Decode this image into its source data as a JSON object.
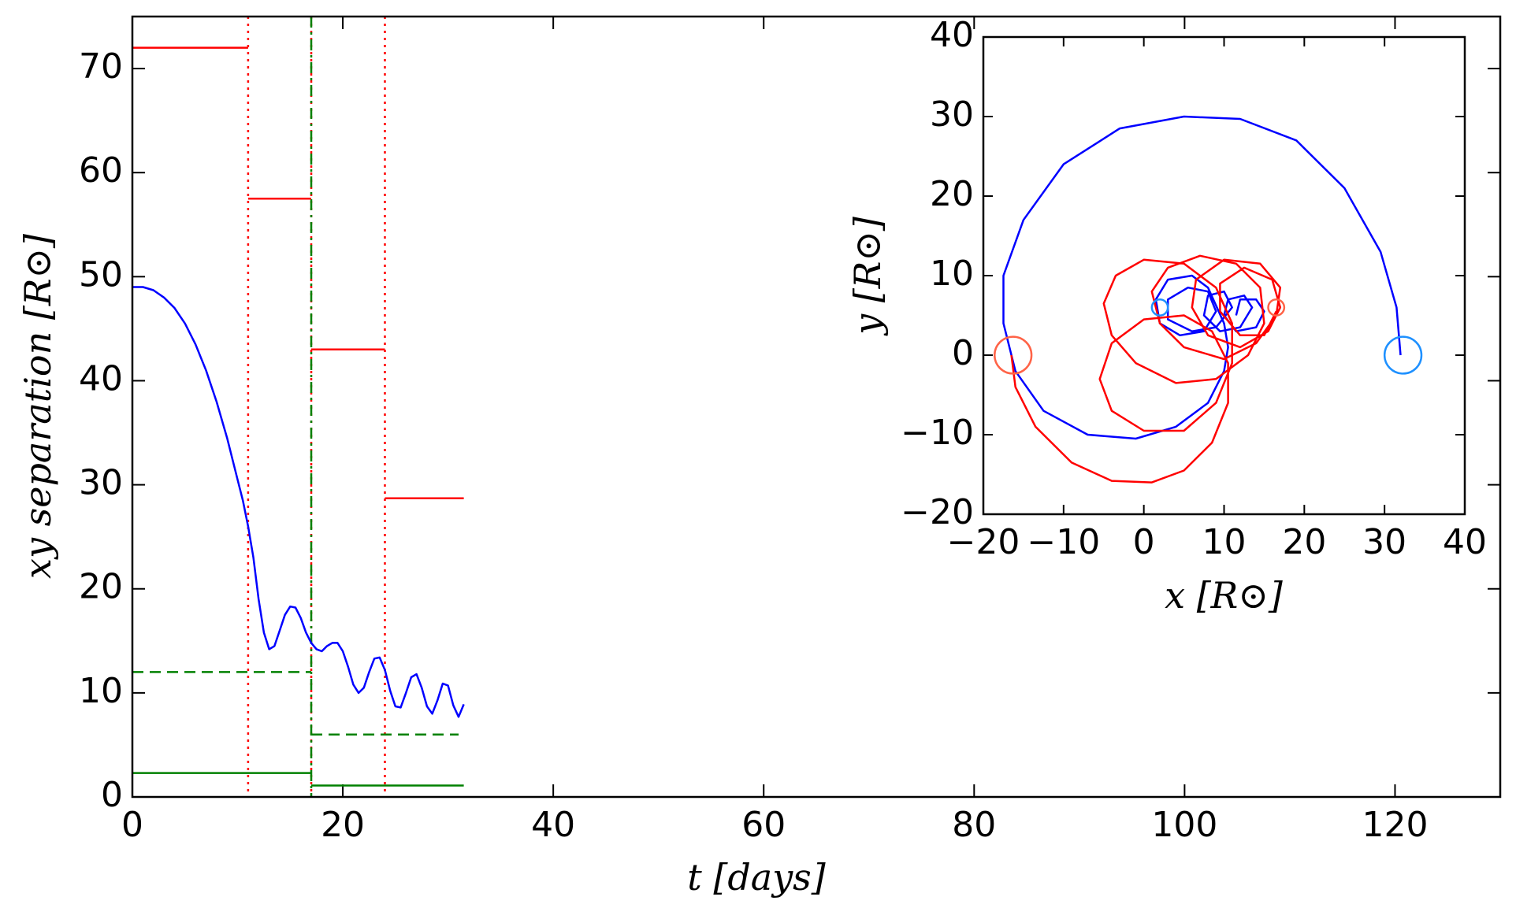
{
  "chart_data": [
    {
      "type": "line",
      "xlabel": "t  [days]",
      "ylabel": "xy  separation  [R⊙]",
      "xlim": [
        0,
        130
      ],
      "ylim": [
        0,
        75
      ],
      "xticks": [
        0,
        20,
        40,
        60,
        80,
        100,
        120
      ],
      "yticks": [
        0,
        10,
        20,
        30,
        40,
        50,
        60,
        70
      ],
      "series": [
        {
          "color": "#0000ff",
          "style": "solid",
          "x": [
            0,
            1,
            2,
            3,
            4,
            5,
            6,
            7,
            8,
            9,
            10,
            10.5,
            11,
            11.5,
            12,
            12.5,
            13,
            13.5,
            14,
            14.5,
            15,
            15.5,
            16,
            16.5,
            17,
            17.5,
            18,
            18.5,
            19,
            19.5,
            20,
            20.5,
            21,
            21.5,
            22,
            22.5,
            23,
            23.5,
            24,
            24.5,
            25,
            25.5,
            26,
            26.5,
            27,
            27.5,
            28,
            28.5,
            29,
            29.5,
            30,
            30.5,
            31,
            31.5
          ],
          "values": [
            49,
            49,
            48.7,
            48,
            47,
            45.5,
            43.5,
            41,
            38,
            34.5,
            30.5,
            28.5,
            26,
            23,
            19,
            15.8,
            14.2,
            14.5,
            16,
            17.5,
            18.3,
            18.2,
            17.2,
            15.8,
            14.8,
            14.2,
            14,
            14.5,
            14.8,
            14.8,
            14,
            12.5,
            10.8,
            10,
            10.5,
            12,
            13.3,
            13.4,
            12.2,
            10.2,
            8.7,
            8.6,
            10,
            11.5,
            11.8,
            10.5,
            8.7,
            8,
            9.3,
            10.9,
            10.7,
            8.8,
            7.7,
            8.9
          ]
        },
        {
          "color": "#ff0000",
          "style": "solid",
          "x": [
            0,
            11
          ],
          "values": [
            72,
            72
          ]
        },
        {
          "color": "#ff0000",
          "style": "solid",
          "x": [
            11,
            17
          ],
          "values": [
            57.5,
            57.5
          ]
        },
        {
          "color": "#ff0000",
          "style": "solid",
          "x": [
            17,
            24
          ],
          "values": [
            43,
            43
          ]
        },
        {
          "color": "#ff0000",
          "style": "solid",
          "x": [
            24,
            31.5
          ],
          "values": [
            28.7,
            28.7
          ]
        },
        {
          "color": "#008000",
          "style": "dashed",
          "x": [
            0,
            17
          ],
          "values": [
            12,
            12
          ]
        },
        {
          "color": "#008000",
          "style": "dashed",
          "x": [
            17,
            31
          ],
          "values": [
            6,
            6
          ]
        },
        {
          "color": "#008000",
          "style": "solid",
          "x": [
            0,
            17
          ],
          "values": [
            2.3,
            2.3
          ]
        },
        {
          "color": "#008000",
          "style": "solid",
          "x": [
            17,
            31.5
          ],
          "values": [
            1.1,
            1.1
          ]
        }
      ],
      "vlines": [
        {
          "x": 11,
          "color": "#ff0000",
          "style": "dotted"
        },
        {
          "x": 17,
          "color": "#ff0000",
          "style": "dotted"
        },
        {
          "x": 17,
          "color": "#008000",
          "style": "dashdot"
        },
        {
          "x": 24,
          "color": "#ff0000",
          "style": "dotted"
        }
      ]
    },
    {
      "type": "line",
      "xlabel": "x [R⊙]",
      "ylabel": "y [R⊙]",
      "xlim": [
        -20,
        40
      ],
      "ylim": [
        -20,
        40
      ],
      "xticks": [
        {
          "value": -20,
          "label": "−20"
        },
        {
          "value": -10,
          "label": "−10"
        },
        0,
        10,
        20,
        30,
        40
      ],
      "yticks": [
        {
          "value": -20,
          "label": "−20"
        },
        {
          "value": -10,
          "label": "−10"
        },
        0,
        10,
        20,
        30,
        40
      ],
      "series": [
        {
          "color": "#0000ff",
          "style": "solid",
          "x": [
            32,
            31.5,
            29.5,
            25,
            19,
            12,
            5,
            -3,
            -10,
            -15,
            -17.5,
            -17.5,
            -16,
            -12.5,
            -7,
            -1,
            4,
            8,
            10,
            10.5,
            10,
            8,
            6,
            3,
            1.5,
            2,
            4.5,
            7.5,
            9,
            8,
            5.5,
            3,
            3,
            6,
            9,
            11,
            10,
            8,
            7.5,
            9.5,
            12,
            13.5,
            12.5,
            10.5,
            10,
            11.5,
            14,
            15,
            14,
            12,
            11.5
          ],
          "values": [
            0,
            6,
            13,
            21,
            27,
            29.7,
            30,
            28.5,
            24,
            17,
            10,
            4,
            -2,
            -7,
            -10,
            -10.5,
            -9,
            -6,
            -2,
            1,
            4,
            8.5,
            10,
            9.5,
            7,
            4,
            2.5,
            3,
            5.5,
            8,
            8.5,
            7,
            4.5,
            3,
            3.5,
            6,
            8,
            7.5,
            5,
            3,
            3.5,
            6,
            7.5,
            7,
            5,
            3,
            3.5,
            5.5,
            7,
            7,
            5
          ]
        },
        {
          "color": "#ff0000",
          "style": "solid",
          "x": [
            -16.5,
            -16,
            -13.5,
            -9,
            -4,
            1,
            5,
            8.5,
            10.5,
            10.5,
            8.5,
            5,
            0,
            -4,
            -5.5,
            -4,
            0,
            5,
            9,
            11,
            11,
            9,
            5,
            0,
            -3.5,
            -5,
            -4,
            -1,
            4,
            9,
            13,
            15,
            14.5,
            11.5,
            7,
            3,
            1,
            2,
            5,
            10,
            14,
            16.5,
            17,
            14.5,
            10,
            6.5,
            6,
            8,
            12,
            15.5,
            17,
            16,
            12.5,
            9.5,
            9.5,
            12,
            15,
            16.5
          ],
          "values": [
            0,
            -4,
            -9,
            -13.5,
            -15.8,
            -16,
            -14.5,
            -11,
            -6,
            -1,
            3,
            5,
            4.5,
            1.5,
            -3,
            -7,
            -9.5,
            -9.5,
            -6,
            -1,
            4,
            8.5,
            11.5,
            12,
            10,
            6.5,
            2.5,
            -1,
            -3.5,
            -3,
            0,
            4,
            8.5,
            11.5,
            12.5,
            11,
            8,
            4,
            1,
            -0.5,
            1.5,
            5,
            8.5,
            11.5,
            12,
            9.5,
            6,
            2.5,
            1,
            3,
            6,
            9.5,
            11,
            9,
            5.5,
            2.5,
            2.5,
            5.5
          ]
        }
      ],
      "markers": [
        {
          "x": 32.3,
          "y": 0,
          "r": 2.3,
          "color": "#1e90ff"
        },
        {
          "x": -16.3,
          "y": 0,
          "r": 2.3,
          "color": "#ff6347"
        },
        {
          "x": 2,
          "y": 6,
          "r": 1,
          "color": "#1e90ff"
        },
        {
          "x": 16.5,
          "y": 6,
          "r": 1,
          "color": "#ff6347"
        }
      ]
    }
  ]
}
